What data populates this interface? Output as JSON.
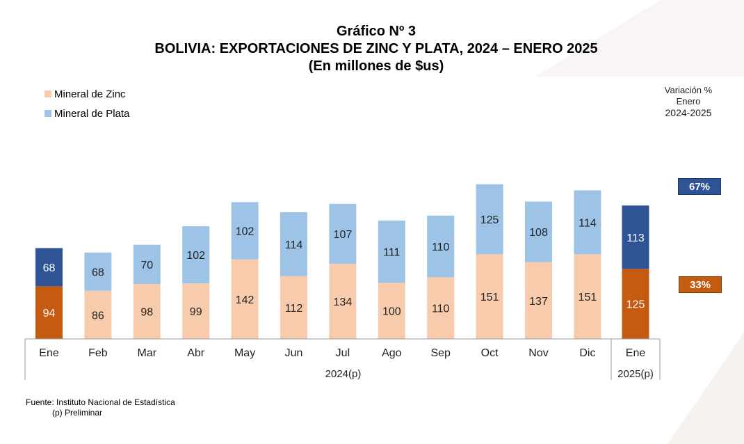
{
  "title": {
    "line1": "Gráfico Nº 3",
    "line2": "BOLIVIA: EXPORTACIONES DE ZINC Y PLATA, 2024 – ENERO 2025",
    "line3": "(En millones de $us)"
  },
  "legend": {
    "zinc": "Mineral de Zinc",
    "plata": "Mineral de Plata"
  },
  "variation": {
    "line1": "Variación %",
    "line2": "Enero",
    "line3": "2024-2025",
    "plata": "67%",
    "zinc": "33%"
  },
  "source": {
    "line1": "Fuente: Instituto Nacional de Estadística",
    "line2": "(p) Preliminar"
  },
  "colors": {
    "zinc_light": "#f8cbad",
    "plata_light": "#9dc3e6",
    "zinc_dark": "#c55a11",
    "plata_dark": "#2e5496"
  },
  "chart_data": {
    "type": "bar",
    "stacked": true,
    "categories": [
      "Ene",
      "Feb",
      "Mar",
      "Abr",
      "May",
      "Jun",
      "Jul",
      "Ago",
      "Sep",
      "Oct",
      "Nov",
      "Dic",
      "Ene"
    ],
    "groups": [
      {
        "label": "2024(p)",
        "categories": [
          "Ene",
          "Feb",
          "Mar",
          "Abr",
          "May",
          "Jun",
          "Jul",
          "Ago",
          "Sep",
          "Oct",
          "Nov",
          "Dic"
        ]
      },
      {
        "label": "2025(p)",
        "categories": [
          "Ene"
        ]
      }
    ],
    "highlighted": [
      "Ene 2024",
      "Ene 2025"
    ],
    "series": [
      {
        "name": "Mineral de Zinc",
        "values": [
          94,
          86,
          98,
          99,
          142,
          112,
          134,
          100,
          110,
          151,
          137,
          151,
          125
        ]
      },
      {
        "name": "Mineral de Plata",
        "values": [
          68,
          68,
          70,
          102,
          102,
          114,
          107,
          111,
          110,
          125,
          108,
          114,
          113
        ]
      }
    ],
    "legend_position": "top-left",
    "grid": false
  }
}
